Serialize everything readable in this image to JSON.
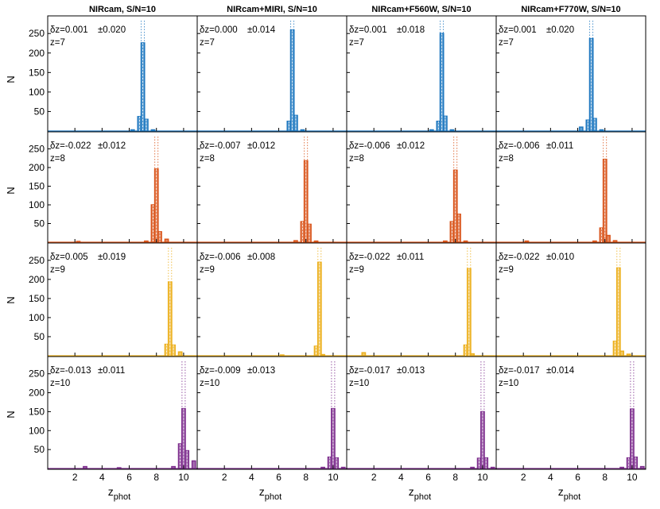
{
  "figure": {
    "xlabel": "z",
    "xlabel_sub": "phot",
    "ylabel": "N"
  },
  "colors": {
    "z7": "#1f78c0",
    "z8": "#d9541a",
    "z9": "#ecb01f",
    "z10": "#7e2f8e",
    "axis": "#000000",
    "background": "#ffffff"
  },
  "chart_data": [
    {
      "type": "bar",
      "title": "NIRcam, S/N=10",
      "delta_label": "δz=0.001",
      "sigma_label": "±0.020",
      "z_label": "z=7",
      "z_true": 7,
      "xlim": [
        0,
        11
      ],
      "ylim": [
        0,
        285
      ],
      "yticks": [
        50,
        100,
        150,
        200,
        250
      ],
      "xticks": [
        2,
        4,
        6,
        8,
        10
      ],
      "bin_width": 0.5,
      "bins": [
        [
          6.25,
          3
        ],
        [
          6.75,
          37
        ],
        [
          7.0,
          226
        ],
        [
          7.25,
          30
        ],
        [
          7.75,
          3
        ]
      ]
    },
    {
      "type": "bar",
      "title": "NIRcam+MIRI, S/N=10",
      "delta_label": "δz=0.000",
      "sigma_label": "±0.014",
      "z_label": "z=7",
      "z_true": 7,
      "xlim": [
        0,
        11
      ],
      "ylim": [
        0,
        285
      ],
      "yticks": [
        50,
        100,
        150,
        200,
        250
      ],
      "xticks": [
        2,
        4,
        6,
        8,
        10
      ],
      "bin_width": 0.5,
      "bins": [
        [
          6.75,
          25
        ],
        [
          7.0,
          259
        ],
        [
          7.25,
          40
        ],
        [
          7.75,
          3
        ]
      ]
    },
    {
      "type": "bar",
      "title": "NIRcam+F560W, S/N=10",
      "delta_label": "δz=0.001",
      "sigma_label": "±0.018",
      "z_label": "z=7",
      "z_true": 7,
      "xlim": [
        0,
        11
      ],
      "ylim": [
        0,
        285
      ],
      "yticks": [
        50,
        100,
        150,
        200,
        250
      ],
      "xticks": [
        2,
        4,
        6,
        8,
        10
      ],
      "bin_width": 0.5,
      "bins": [
        [
          6.25,
          3
        ],
        [
          6.75,
          25
        ],
        [
          7.0,
          250
        ],
        [
          7.25,
          38
        ],
        [
          7.75,
          3
        ]
      ]
    },
    {
      "type": "bar",
      "title": "NIRcam+F770W, S/N=10",
      "delta_label": "δz=0.001",
      "sigma_label": "±0.020",
      "z_label": "z=7",
      "z_true": 7,
      "xlim": [
        0,
        11
      ],
      "ylim": [
        0,
        285
      ],
      "yticks": [
        50,
        100,
        150,
        200,
        250
      ],
      "xticks": [
        2,
        4,
        6,
        8,
        10
      ],
      "bin_width": 0.5,
      "bins": [
        [
          6.25,
          10
        ],
        [
          6.75,
          28
        ],
        [
          7.0,
          237
        ],
        [
          7.25,
          32
        ],
        [
          7.75,
          3
        ]
      ]
    },
    {
      "type": "bar",
      "title": "",
      "delta_label": "δz=-0.022",
      "sigma_label": "±0.012",
      "z_label": "z=8",
      "z_true": 8,
      "xlim": [
        0,
        11
      ],
      "ylim": [
        0,
        285
      ],
      "yticks": [
        50,
        100,
        150,
        200,
        250
      ],
      "xticks": [
        2,
        4,
        6,
        8,
        10
      ],
      "bin_width": 0.5,
      "bins": [
        [
          2.25,
          2
        ],
        [
          7.25,
          3
        ],
        [
          7.75,
          100
        ],
        [
          8.0,
          196
        ],
        [
          8.25,
          28
        ],
        [
          8.75,
          8
        ]
      ]
    },
    {
      "type": "bar",
      "title": "",
      "delta_label": "δz=-0.007",
      "sigma_label": "±0.012",
      "z_label": "z=8",
      "z_true": 8,
      "xlim": [
        0,
        11
      ],
      "ylim": [
        0,
        285
      ],
      "yticks": [
        50,
        100,
        150,
        200,
        250
      ],
      "xticks": [
        2,
        4,
        6,
        8,
        10
      ],
      "bin_width": 0.5,
      "bins": [
        [
          7.25,
          4
        ],
        [
          7.75,
          55
        ],
        [
          8.0,
          218
        ],
        [
          8.25,
          48
        ],
        [
          8.75,
          3
        ]
      ]
    },
    {
      "type": "bar",
      "title": "",
      "delta_label": "δz=-0.006",
      "sigma_label": "±0.012",
      "z_label": "z=8",
      "z_true": 8,
      "xlim": [
        0,
        11
      ],
      "ylim": [
        0,
        285
      ],
      "yticks": [
        50,
        100,
        150,
        200,
        250
      ],
      "xticks": [
        2,
        4,
        6,
        8,
        10
      ],
      "bin_width": 0.5,
      "bins": [
        [
          7.25,
          3
        ],
        [
          7.75,
          55
        ],
        [
          8.0,
          193
        ],
        [
          8.25,
          75
        ],
        [
          8.75,
          3
        ]
      ]
    },
    {
      "type": "bar",
      "title": "",
      "delta_label": "δz=-0.006",
      "sigma_label": "±0.011",
      "z_label": "z=8",
      "z_true": 8,
      "xlim": [
        0,
        11
      ],
      "ylim": [
        0,
        285
      ],
      "yticks": [
        50,
        100,
        150,
        200,
        250
      ],
      "xticks": [
        2,
        4,
        6,
        8,
        10
      ],
      "bin_width": 0.5,
      "bins": [
        [
          2.25,
          3
        ],
        [
          7.25,
          3
        ],
        [
          7.75,
          38
        ],
        [
          8.0,
          222
        ],
        [
          8.25,
          18
        ],
        [
          8.75,
          4
        ]
      ]
    },
    {
      "type": "bar",
      "title": "",
      "delta_label": "δz=0.005",
      "sigma_label": "±0.019",
      "z_label": "z=9",
      "z_true": 9,
      "xlim": [
        0,
        11
      ],
      "ylim": [
        0,
        285
      ],
      "yticks": [
        50,
        100,
        150,
        200,
        250
      ],
      "xticks": [
        2,
        4,
        6,
        8,
        10
      ],
      "bin_width": 0.5,
      "bins": [
        [
          8.75,
          30
        ],
        [
          9.0,
          193
        ],
        [
          9.25,
          28
        ],
        [
          9.75,
          10
        ]
      ]
    },
    {
      "type": "bar",
      "title": "",
      "delta_label": "δz=-0.006",
      "sigma_label": "±0.008",
      "z_label": "z=9",
      "z_true": 9,
      "xlim": [
        0,
        11
      ],
      "ylim": [
        0,
        285
      ],
      "yticks": [
        50,
        100,
        150,
        200,
        250
      ],
      "xticks": [
        2,
        4,
        6,
        8,
        10
      ],
      "bin_width": 0.5,
      "bins": [
        [
          6.25,
          2
        ],
        [
          8.75,
          25
        ],
        [
          9.0,
          245
        ],
        [
          9.25,
          3
        ]
      ]
    },
    {
      "type": "bar",
      "title": "",
      "delta_label": "δz=-0.022",
      "sigma_label": "±0.011",
      "z_label": "z=9",
      "z_true": 9,
      "xlim": [
        0,
        11
      ],
      "ylim": [
        0,
        285
      ],
      "yticks": [
        50,
        100,
        150,
        200,
        250
      ],
      "xticks": [
        2,
        4,
        6,
        8,
        10
      ],
      "bin_width": 0.5,
      "bins": [
        [
          1.25,
          8
        ],
        [
          8.75,
          28
        ],
        [
          9.0,
          228
        ],
        [
          9.25,
          5
        ]
      ]
    },
    {
      "type": "bar",
      "title": "",
      "delta_label": "δz=-0.022",
      "sigma_label": "±0.010",
      "z_label": "z=9",
      "z_true": 9,
      "xlim": [
        0,
        11
      ],
      "ylim": [
        0,
        285
      ],
      "yticks": [
        50,
        100,
        150,
        200,
        250
      ],
      "xticks": [
        2,
        4,
        6,
        8,
        10
      ],
      "bin_width": 0.5,
      "bins": [
        [
          8.75,
          38
        ],
        [
          9.0,
          230
        ],
        [
          9.25,
          12
        ],
        [
          9.75,
          4
        ]
      ]
    },
    {
      "type": "bar",
      "title": "",
      "delta_label": "δz=-0.013",
      "sigma_label": "±0.011",
      "z_label": "z=10",
      "z_true": 10,
      "xlim": [
        0,
        11
      ],
      "ylim": [
        0,
        285
      ],
      "yticks": [
        50,
        100,
        150,
        200,
        250
      ],
      "xticks": [
        2,
        4,
        6,
        8,
        10
      ],
      "bin_width": 0.5,
      "bins": [
        [
          2.75,
          5
        ],
        [
          5.25,
          2
        ],
        [
          9.25,
          5
        ],
        [
          9.75,
          65
        ],
        [
          10.0,
          158
        ],
        [
          10.25,
          47
        ],
        [
          10.75,
          20
        ]
      ]
    },
    {
      "type": "bar",
      "title": "",
      "delta_label": "δz=-0.009",
      "sigma_label": "±0.013",
      "z_label": "z=10",
      "z_true": 10,
      "xlim": [
        0,
        11
      ],
      "ylim": [
        0,
        285
      ],
      "yticks": [
        50,
        100,
        150,
        200,
        250
      ],
      "xticks": [
        2,
        4,
        6,
        8,
        10
      ],
      "bin_width": 0.5,
      "bins": [
        [
          9.25,
          3
        ],
        [
          9.75,
          30
        ],
        [
          10.0,
          158
        ],
        [
          10.25,
          28
        ],
        [
          10.75,
          3
        ]
      ]
    },
    {
      "type": "bar",
      "title": "",
      "delta_label": "δz=-0.017",
      "sigma_label": "±0.013",
      "z_label": "z=10",
      "z_true": 10,
      "xlim": [
        0,
        11
      ],
      "ylim": [
        0,
        285
      ],
      "yticks": [
        50,
        100,
        150,
        200,
        250
      ],
      "xticks": [
        2,
        4,
        6,
        8,
        10
      ],
      "bin_width": 0.5,
      "bins": [
        [
          9.25,
          3
        ],
        [
          9.75,
          27
        ],
        [
          10.0,
          150
        ],
        [
          10.25,
          28
        ],
        [
          10.75,
          3
        ]
      ]
    },
    {
      "type": "bar",
      "title": "",
      "delta_label": "δz=-0.017",
      "sigma_label": "±0.014",
      "z_label": "z=10",
      "z_true": 10,
      "xlim": [
        0,
        11
      ],
      "ylim": [
        0,
        285
      ],
      "yticks": [
        50,
        100,
        150,
        200,
        250
      ],
      "xticks": [
        2,
        4,
        6,
        8,
        10
      ],
      "bin_width": 0.5,
      "bins": [
        [
          9.25,
          3
        ],
        [
          9.75,
          28
        ],
        [
          10.0,
          157
        ],
        [
          10.25,
          30
        ],
        [
          10.75,
          5
        ]
      ]
    }
  ]
}
